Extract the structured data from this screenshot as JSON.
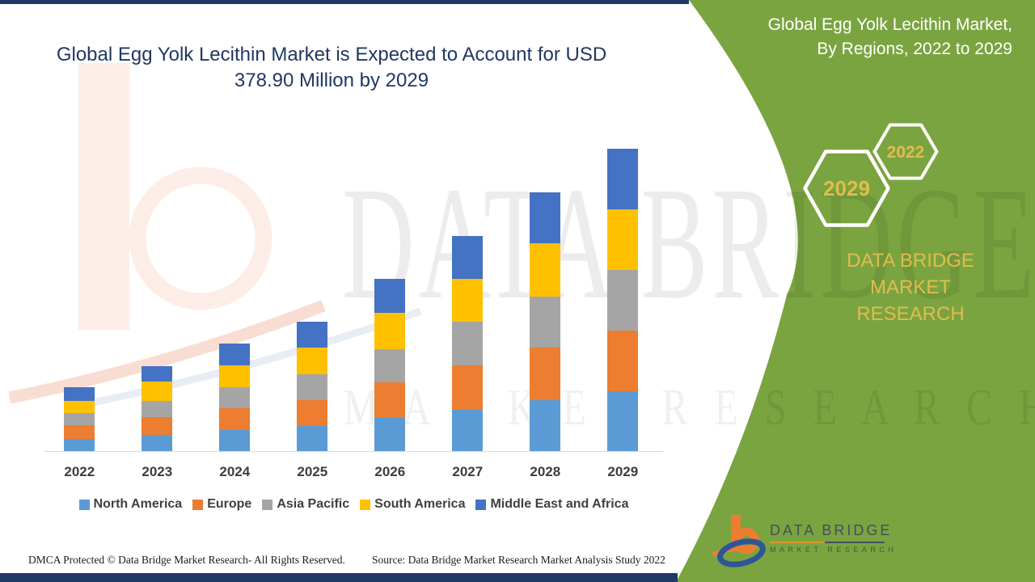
{
  "header": {
    "title_line1": "Global Egg Yolk Lecithin Market is Expected to Account for USD",
    "title_line2": "378.90 Million by 2029"
  },
  "side_panel": {
    "title_line1": "Global Egg Yolk Lecithin Market,",
    "title_line2": "By Regions, 2022 to 2029",
    "hexagons": [
      {
        "label": "2029"
      },
      {
        "label": "2022"
      }
    ],
    "brand_line1": "DATA BRIDGE MARKET",
    "brand_line2": "RESEARCH",
    "panel_color": "#7AA440",
    "gold_color": "#E2BC4E"
  },
  "watermark": {
    "line1": "DATA BRIDGE",
    "line2": "M A R K E T   R E S E A R C H"
  },
  "logo": {
    "name": "DATA BRIDGE",
    "subtitle": "MARKET RESEARCH"
  },
  "footer": {
    "left": "DMCA Protected © Data Bridge Market Research- All Rights Reserved.",
    "right": "Source: Data Bridge Market Research Market Analysis Study 2022"
  },
  "chart_data": {
    "type": "bar",
    "stacked": true,
    "title": "Global Egg Yolk Lecithin Market, By Regions, 2022 to 2029",
    "unit": "USD Million",
    "categories": [
      "2022",
      "2023",
      "2024",
      "2025",
      "2026",
      "2027",
      "2028",
      "2029"
    ],
    "series": [
      {
        "name": "North America",
        "color": "#5B9BD5",
        "values": [
          15,
          20,
          26,
          31,
          42,
          52,
          64,
          75.1
        ]
      },
      {
        "name": "Europe",
        "color": "#ED7D31",
        "values": [
          17,
          23,
          28,
          33,
          44,
          55,
          66,
          75.9
        ]
      },
      {
        "name": "Asia Pacific",
        "color": "#A5A5A5",
        "values": [
          16,
          20,
          26,
          32,
          42,
          55,
          63,
          75.9
        ]
      },
      {
        "name": "South America",
        "color": "#FFC000",
        "values": [
          15,
          24,
          27,
          34,
          45,
          54,
          67,
          76.0
        ]
      },
      {
        "name": "Middle East and Africa",
        "color": "#4472C4",
        "values": [
          17,
          20,
          28,
          32,
          43,
          54,
          64,
          76.0
        ]
      }
    ],
    "estimated_totals": [
      80,
      107,
      135,
      162,
      216,
      270,
      324,
      378.9
    ],
    "xlabel": "",
    "ylabel": "",
    "y_axis_visible": false,
    "gridlines": false,
    "legend_position": "bottom"
  }
}
